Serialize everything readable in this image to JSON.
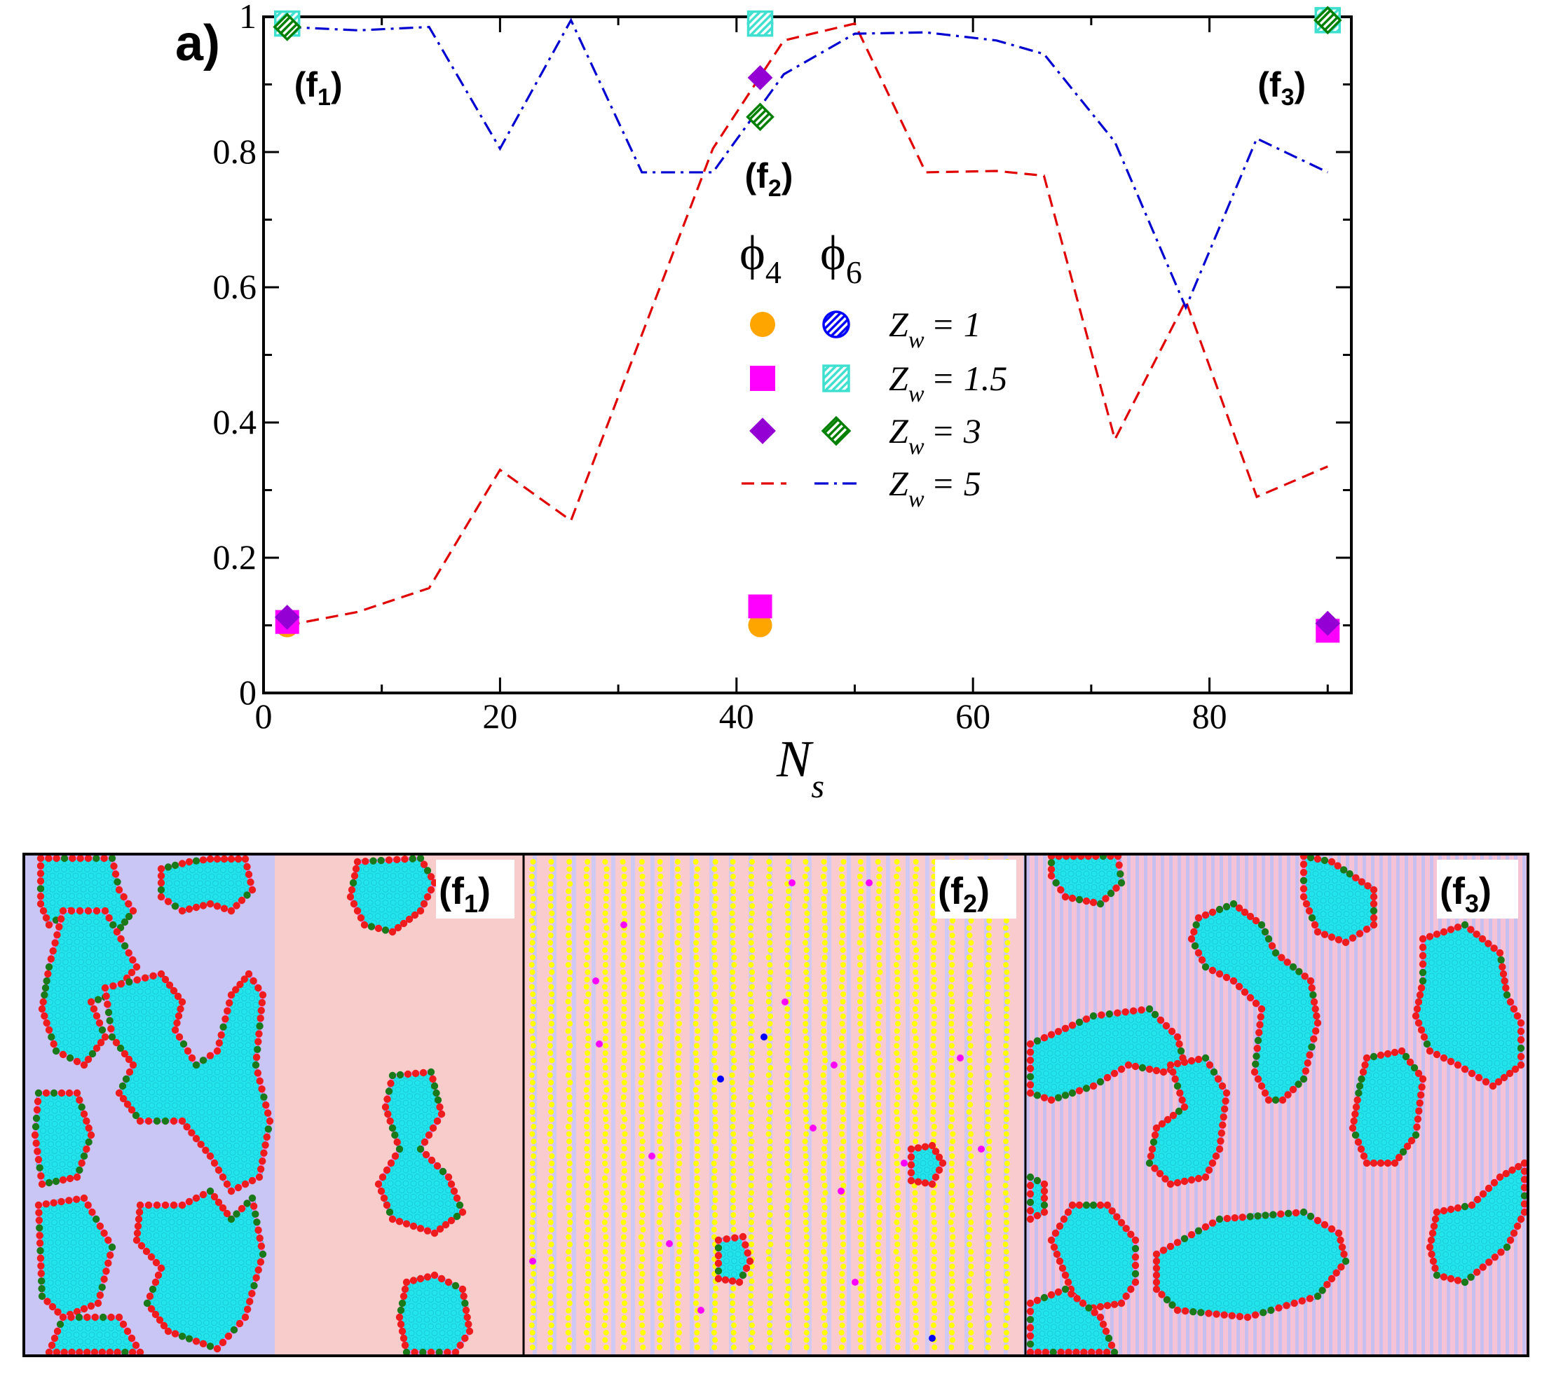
{
  "panel_label": "a)",
  "chart_data": {
    "type": "line",
    "xlabel": "N",
    "xlabel_sub": "s",
    "xlim": [
      0,
      92
    ],
    "ylim": [
      0,
      1.0
    ],
    "xticks": [
      0,
      20,
      40,
      60,
      80
    ],
    "xtick_labels": [
      "0",
      "20",
      "40",
      "60",
      "80"
    ],
    "yticks": [
      0,
      0.2,
      0.4,
      0.6,
      0.8,
      1.0
    ],
    "ytick_labels": [
      "0",
      "0.2",
      "0.4",
      "0.6",
      "0.8",
      "1"
    ],
    "legend_header": {
      "phi4": "ϕ",
      "phi4_sub": "4",
      "phi6": "ϕ",
      "phi6_sub": "6"
    },
    "legend_z_symbol": "Z",
    "legend_z_sub": "w",
    "series": [
      {
        "name": "Z_w = 1",
        "legend_value": "= 1",
        "kind": "markers",
        "marker4": "circle",
        "marker6": "circle-hatched",
        "color4": "#ffa500",
        "color6": "#0000ff",
        "x": [
          2,
          42,
          90
        ],
        "phi4": [
          0.1,
          0.1,
          0.095
        ],
        "phi6": [
          0.99,
          0.99,
          0.995
        ]
      },
      {
        "name": "Z_w = 1.5",
        "legend_value": "= 1.5",
        "kind": "markers",
        "marker4": "square",
        "marker6": "square-hatched",
        "color4": "#ff00ff",
        "color6": "#40e0d0",
        "x": [
          2,
          42,
          90
        ],
        "phi4": [
          0.105,
          0.128,
          0.092
        ],
        "phi6": [
          0.99,
          0.99,
          0.995
        ]
      },
      {
        "name": "Z_w = 3",
        "legend_value": "= 3",
        "kind": "markers",
        "marker4": "diamond",
        "marker6": "diamond-hatched",
        "color4": "#9400d3",
        "color6": "#008000",
        "x": [
          2,
          42,
          90
        ],
        "phi4": [
          0.112,
          0.91,
          0.103
        ],
        "phi6": [
          0.985,
          0.852,
          0.995
        ]
      },
      {
        "name": "Z_w = 5",
        "legend_value": "= 5",
        "kind": "lines",
        "color4": "#e00000",
        "color6": "#0000d0",
        "x": [
          2,
          8,
          14,
          20,
          26,
          32,
          38,
          44,
          50,
          56,
          62,
          66,
          72,
          78,
          84,
          90
        ],
        "phi4": [
          0.1,
          0.12,
          0.155,
          0.33,
          0.255,
          0.53,
          0.805,
          0.965,
          0.99,
          0.77,
          0.772,
          0.765,
          0.375,
          0.58,
          0.29,
          0.335
        ],
        "phi6": [
          0.985,
          0.98,
          0.985,
          0.805,
          0.995,
          0.77,
          0.77,
          0.915,
          0.975,
          0.977,
          0.965,
          0.945,
          0.815,
          0.57,
          0.82,
          0.77
        ]
      }
    ],
    "annotations": [
      {
        "text": "(f",
        "sub": "1",
        "close": ")",
        "x": 2,
        "y": 0.92
      },
      {
        "text": "(f",
        "sub": "2",
        "close": ")",
        "x": 42,
        "y": 0.77
      },
      {
        "text": "(f",
        "sub": "3",
        "close": ")",
        "x": 90,
        "y": 0.92
      }
    ]
  },
  "snapshots": [
    {
      "label": "(f",
      "sub": "1",
      "close": ")",
      "background": "split violet / pink"
    },
    {
      "label": "(f",
      "sub": "2",
      "close": ")",
      "background": "striped yellow chains"
    },
    {
      "label": "(f",
      "sub": "3",
      "close": ")",
      "background": "fine stripes"
    }
  ],
  "colors": {
    "cyan": "#22e5ec",
    "cyan_dot": "#1cc8d8",
    "red": "#ee1c1c",
    "green": "#1a7a1a",
    "violet_bg": "#c9c6f5",
    "pink_bg": "#f9cccc",
    "orchid": "#ee88ee",
    "yellow": "#ffff00",
    "magenta": "#ff00ff",
    "blue": "#0000ff"
  }
}
